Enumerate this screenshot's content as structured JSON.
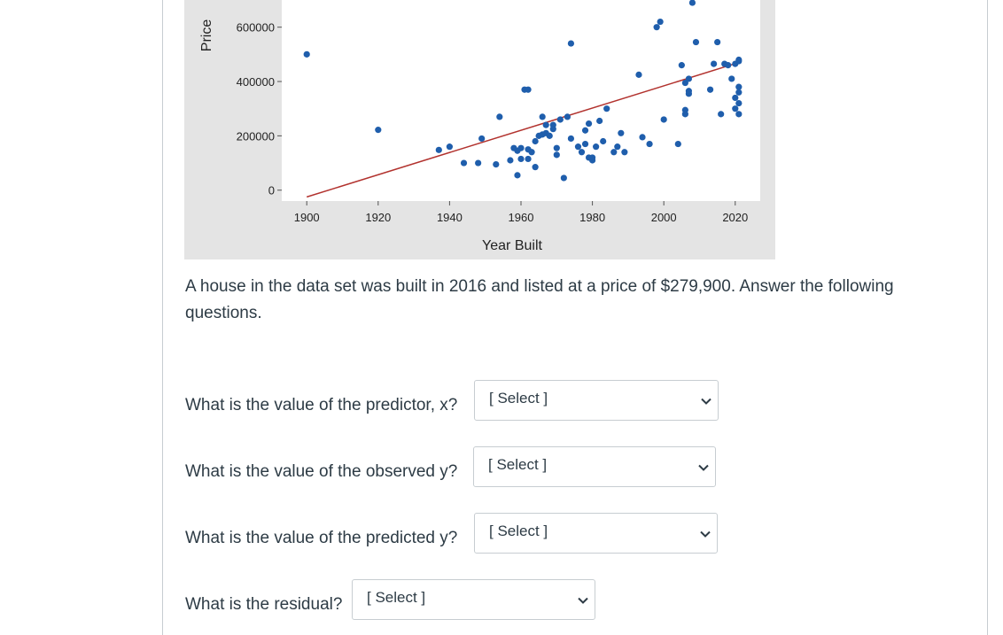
{
  "chart_data": {
    "type": "scatter",
    "ylabel": "Price",
    "xlabel": "Year Built",
    "x_ticks": [
      1900,
      1920,
      1940,
      1960,
      1980,
      2000,
      2020
    ],
    "y_ticks": [
      0,
      200000,
      400000,
      600000
    ],
    "xlim": [
      1893,
      2027
    ],
    "ylim": [
      -40000,
      700000
    ],
    "points": [
      [
        1900,
        500000
      ],
      [
        1920,
        222000
      ],
      [
        1937,
        148000
      ],
      [
        1940,
        160000
      ],
      [
        1944,
        100000
      ],
      [
        1948,
        100000
      ],
      [
        1949,
        190000
      ],
      [
        1953,
        95000
      ],
      [
        1954,
        270000
      ],
      [
        1957,
        110000
      ],
      [
        1958,
        155000
      ],
      [
        1959,
        55000
      ],
      [
        1959,
        145000
      ],
      [
        1960,
        155000
      ],
      [
        1960,
        115000
      ],
      [
        1961,
        370000
      ],
      [
        1962,
        370000
      ],
      [
        1962,
        115000
      ],
      [
        1962,
        150000
      ],
      [
        1963,
        140000
      ],
      [
        1964,
        180000
      ],
      [
        1964,
        85000
      ],
      [
        1965,
        200000
      ],
      [
        1966,
        205000
      ],
      [
        1966,
        270000
      ],
      [
        1967,
        240000
      ],
      [
        1967,
        210000
      ],
      [
        1968,
        200000
      ],
      [
        1969,
        240000
      ],
      [
        1969,
        225000
      ],
      [
        1970,
        155000
      ],
      [
        1970,
        130000
      ],
      [
        1971,
        260000
      ],
      [
        1972,
        45000
      ],
      [
        1973,
        270000
      ],
      [
        1974,
        540000
      ],
      [
        1974,
        190000
      ],
      [
        1976,
        160000
      ],
      [
        1977,
        140000
      ],
      [
        1978,
        170000
      ],
      [
        1978,
        220000
      ],
      [
        1979,
        245000
      ],
      [
        1979,
        120000
      ],
      [
        1980,
        110000
      ],
      [
        1980,
        120000
      ],
      [
        1981,
        160000
      ],
      [
        1982,
        255000
      ],
      [
        1983,
        180000
      ],
      [
        1984,
        300000
      ],
      [
        1986,
        140000
      ],
      [
        1987,
        160000
      ],
      [
        1988,
        210000
      ],
      [
        1989,
        140000
      ],
      [
        1993,
        425000
      ],
      [
        1994,
        195000
      ],
      [
        1996,
        170000
      ],
      [
        1998,
        600000
      ],
      [
        1999,
        620000
      ],
      [
        2000,
        260000
      ],
      [
        2004,
        170000
      ],
      [
        2005,
        460000
      ],
      [
        2006,
        395000
      ],
      [
        2006,
        295000
      ],
      [
        2006,
        280000
      ],
      [
        2007,
        355000
      ],
      [
        2007,
        410000
      ],
      [
        2007,
        365000
      ],
      [
        2008,
        690000
      ],
      [
        2009,
        545000
      ],
      [
        2013,
        370000
      ],
      [
        2014,
        465000
      ],
      [
        2015,
        545000
      ],
      [
        2016,
        279900
      ],
      [
        2017,
        465000
      ],
      [
        2018,
        460000
      ],
      [
        2019,
        410000
      ],
      [
        2020,
        465000
      ],
      [
        2020,
        340000
      ],
      [
        2020,
        300000
      ],
      [
        2021,
        475000
      ],
      [
        2021,
        480000
      ],
      [
        2021,
        380000
      ],
      [
        2021,
        360000
      ],
      [
        2021,
        320000
      ],
      [
        2021,
        280000
      ]
    ],
    "trend_line": {
      "x": [
        1900,
        2021
      ],
      "y": [
        -25000,
        470000
      ]
    },
    "colors": {
      "marker": "#1f5eac",
      "trend": "#b2322e",
      "plot_bg": "#ffffff",
      "panel_bg": "#e4e4e4"
    }
  },
  "prompt": "A house in the data set was built in 2016 and listed at a price of $279,900.  Answer the following questions.",
  "questions": [
    {
      "label": "What is the value of the predictor, x?",
      "select": "[ Select ]"
    },
    {
      "label": "What is the value of the observed y?",
      "select": "[ Select ]"
    },
    {
      "label": "What is the value of the predicted y?",
      "select": "[ Select ]"
    },
    {
      "label": "What is the residual?",
      "select": "[ Select ]"
    }
  ],
  "icons": {
    "dropdown": "chevron-down-icon"
  }
}
